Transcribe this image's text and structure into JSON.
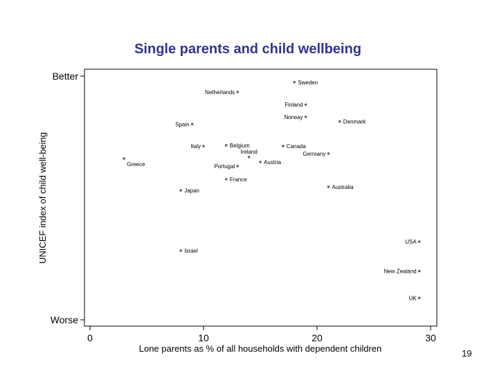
{
  "slide": {
    "title": "Single parents and child wellbeing",
    "page_number": "19"
  },
  "chart_data": {
    "type": "scatter",
    "title": "Single parents and child wellbeing",
    "xlabel": "Lone parents as % of all households with dependent children",
    "ylabel": "UNICEF index of child well-being",
    "xlim": [
      0,
      30
    ],
    "ylim": [
      0,
      100
    ],
    "x_ticks": [
      {
        "value": 0,
        "label": "0"
      },
      {
        "value": 10,
        "label": "10"
      },
      {
        "value": 20,
        "label": "20"
      },
      {
        "value": 30,
        "label": "30"
      }
    ],
    "y_ticks": [
      {
        "value": 100,
        "label": "Better"
      },
      {
        "value": 0,
        "label": "Worse"
      }
    ],
    "grid": false,
    "points": [
      {
        "label": "Sweden",
        "x": 18,
        "y": 97.5,
        "label_side": "right"
      },
      {
        "label": "Netherlands",
        "x": 13,
        "y": 93.5,
        "label_side": "left"
      },
      {
        "label": "Finland",
        "x": 19,
        "y": 88.3,
        "label_side": "left"
      },
      {
        "label": "Norway",
        "x": 19,
        "y": 83.3,
        "label_side": "left"
      },
      {
        "label": "Denmark",
        "x": 22,
        "y": 81.4,
        "label_side": "right"
      },
      {
        "label": "Spain",
        "x": 9,
        "y": 80.3,
        "label_side": "left"
      },
      {
        "label": "Italy",
        "x": 10,
        "y": 71.3,
        "label_side": "left"
      },
      {
        "label": "Belgium",
        "x": 12,
        "y": 71.6,
        "label_side": "right"
      },
      {
        "label": "Canada",
        "x": 17,
        "y": 71.3,
        "label_side": "right"
      },
      {
        "label": "Ireland",
        "x": 14,
        "y": 66.8,
        "label_side": "above"
      },
      {
        "label": "Germany",
        "x": 21,
        "y": 68.2,
        "label_side": "left"
      },
      {
        "label": "Greece",
        "x": 3,
        "y": 66.2,
        "label_side": "below-right"
      },
      {
        "label": "Austria",
        "x": 15,
        "y": 64.8,
        "label_side": "right"
      },
      {
        "label": "Portugal",
        "x": 13,
        "y": 63.1,
        "label_side": "left"
      },
      {
        "label": "France",
        "x": 12,
        "y": 57.7,
        "label_side": "right"
      },
      {
        "label": "Australia",
        "x": 21,
        "y": 54.6,
        "label_side": "right"
      },
      {
        "label": "Japan",
        "x": 8,
        "y": 53.1,
        "label_side": "right"
      },
      {
        "label": "USA",
        "x": 29,
        "y": 32.1,
        "label_side": "left"
      },
      {
        "label": "Israel",
        "x": 8,
        "y": 28.4,
        "label_side": "right"
      },
      {
        "label": "New Zealand",
        "x": 29,
        "y": 20.0,
        "label_side": "left"
      },
      {
        "label": "UK",
        "x": 29,
        "y": 9.0,
        "label_side": "left"
      }
    ]
  },
  "colors": {
    "title": "#33338f",
    "marker": "#666666",
    "axis": "#000000"
  }
}
